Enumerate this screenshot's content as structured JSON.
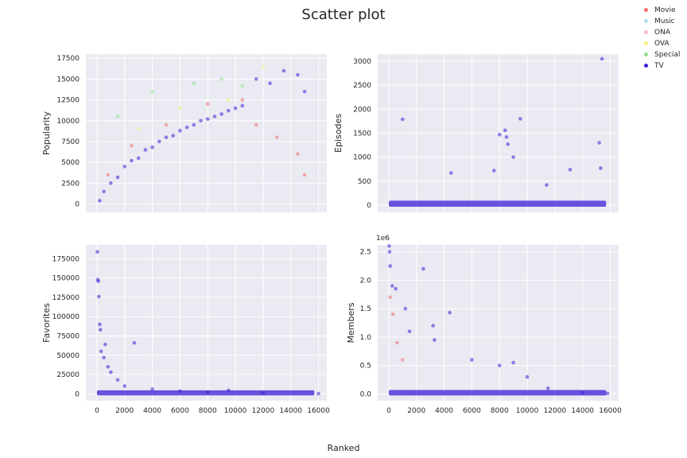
{
  "figure": {
    "title": "Scatter plot",
    "shared_xlabel": "Ranked"
  },
  "legend": [
    {
      "label": "Movie",
      "color": "#f07070"
    },
    {
      "label": "Music",
      "color": "#aee0ee"
    },
    {
      "label": "ONA",
      "color": "#f4b8d8"
    },
    {
      "label": "OVA",
      "color": "#f2f07a"
    },
    {
      "label": "Special",
      "color": "#90e090"
    },
    {
      "label": "TV",
      "color": "#3a1fd6"
    }
  ],
  "chart_data": [
    {
      "type": "scatter",
      "panel": "top-left",
      "xlabel": "",
      "ylabel": "Popularity",
      "xlim": [
        -800,
        16600
      ],
      "ylim": [
        -1000,
        18000
      ],
      "xticks": [
        0,
        2000,
        4000,
        6000,
        8000,
        10000,
        12000,
        14000,
        16000
      ],
      "xtick_labels_shown": false,
      "yticks": [
        0,
        2500,
        5000,
        7500,
        10000,
        12500,
        15000,
        17500
      ],
      "grid": true,
      "series": [
        {
          "name": "TV",
          "points": [
            [
              200,
              400
            ],
            [
              500,
              1500
            ],
            [
              1000,
              2500
            ],
            [
              1500,
              3200
            ],
            [
              2000,
              4500
            ],
            [
              2500,
              5200
            ],
            [
              3000,
              5500
            ],
            [
              3500,
              6500
            ],
            [
              4000,
              6800
            ],
            [
              4500,
              7500
            ],
            [
              5000,
              8000
            ],
            [
              5500,
              8200
            ],
            [
              6000,
              8800
            ],
            [
              6500,
              9200
            ],
            [
              7000,
              9500
            ],
            [
              7500,
              10000
            ],
            [
              8000,
              10200
            ],
            [
              8500,
              10500
            ],
            [
              9000,
              10800
            ],
            [
              9500,
              11200
            ],
            [
              10000,
              11500
            ],
            [
              10500,
              11800
            ],
            [
              11500,
              15000
            ],
            [
              12500,
              14500
            ],
            [
              13500,
              16000
            ],
            [
              14500,
              15500
            ],
            [
              15000,
              13500
            ]
          ]
        },
        {
          "name": "Movie",
          "points": [
            [
              800,
              3500
            ],
            [
              2500,
              7000
            ],
            [
              5000,
              9500
            ],
            [
              8000,
              12000
            ],
            [
              10500,
              12500
            ],
            [
              11500,
              9500
            ],
            [
              13000,
              8000
            ],
            [
              14500,
              6000
            ],
            [
              15000,
              3500
            ]
          ]
        },
        {
          "name": "Special",
          "points": [
            [
              1500,
              10500
            ],
            [
              4000,
              13500
            ],
            [
              7000,
              14500
            ],
            [
              9000,
              15000
            ],
            [
              10500,
              14200
            ]
          ]
        },
        {
          "name": "OVA",
          "points": [
            [
              3000,
              9000
            ],
            [
              6000,
              11500
            ],
            [
              9500,
              12500
            ],
            [
              12000,
              16500
            ]
          ]
        }
      ]
    },
    {
      "type": "scatter",
      "panel": "top-right",
      "xlabel": "",
      "ylabel": "Episodes",
      "xlim": [
        -800,
        16600
      ],
      "ylim": [
        -150,
        3150
      ],
      "xticks": [
        0,
        2000,
        4000,
        6000,
        8000,
        10000,
        12000,
        14000,
        16000
      ],
      "xtick_labels_shown": false,
      "yticks": [
        0,
        500,
        1000,
        1500,
        2000,
        2500,
        3000
      ],
      "grid": true,
      "series": [
        {
          "name": "TV",
          "points": [
            [
              1000,
              1790
            ],
            [
              4500,
              670
            ],
            [
              7600,
              720
            ],
            [
              8000,
              1470
            ],
            [
              8400,
              1560
            ],
            [
              8500,
              1420
            ],
            [
              8600,
              1270
            ],
            [
              9000,
              1000
            ],
            [
              9500,
              1800
            ],
            [
              11400,
              420
            ],
            [
              13100,
              740
            ],
            [
              15200,
              1300
            ],
            [
              15300,
              770
            ],
            [
              15400,
              3050
            ]
          ]
        }
      ]
    },
    {
      "type": "scatter",
      "panel": "bottom-left",
      "xlabel": "",
      "ylabel": "Favorites",
      "xlim": [
        -800,
        16600
      ],
      "ylim": [
        -9000,
        193000
      ],
      "xticks": [
        0,
        2000,
        4000,
        6000,
        8000,
        10000,
        12000,
        14000,
        16000
      ],
      "yticks": [
        0,
        25000,
        50000,
        75000,
        100000,
        125000,
        150000,
        175000
      ],
      "grid": true,
      "series": [
        {
          "name": "TV",
          "points": [
            [
              30,
              184000
            ],
            [
              60,
              148000
            ],
            [
              100,
              146000
            ],
            [
              140,
              126000
            ],
            [
              200,
              90000
            ],
            [
              250,
              83000
            ],
            [
              600,
              64000
            ],
            [
              2700,
              66000
            ],
            [
              300,
              55000
            ],
            [
              500,
              47000
            ],
            [
              800,
              35000
            ],
            [
              1000,
              28000
            ],
            [
              1500,
              18000
            ],
            [
              2000,
              10000
            ],
            [
              4000,
              6000
            ],
            [
              6000,
              3500
            ],
            [
              8000,
              2000
            ],
            [
              9500,
              4500
            ],
            [
              12000,
              800
            ],
            [
              16000,
              200
            ]
          ]
        }
      ]
    },
    {
      "type": "scatter",
      "panel": "bottom-right",
      "xlabel": "",
      "ylabel": "Members",
      "offset_text": "1e6",
      "xlim": [
        -800,
        16600
      ],
      "ylim": [
        -0.12,
        2.62
      ],
      "xticks": [
        0,
        2000,
        4000,
        6000,
        8000,
        10000,
        12000,
        14000,
        16000
      ],
      "yticks": [
        0.0,
        0.5,
        1.0,
        1.5,
        2.0,
        2.5
      ],
      "grid": true,
      "series": [
        {
          "name": "TV",
          "points": [
            [
              30,
              2.6
            ],
            [
              60,
              2.5
            ],
            [
              100,
              2.25
            ],
            [
              250,
              1.9
            ],
            [
              500,
              1.85
            ],
            [
              1200,
              1.5
            ],
            [
              2500,
              2.2
            ],
            [
              4400,
              1.43
            ],
            [
              3200,
              1.2
            ],
            [
              1500,
              1.1
            ],
            [
              3300,
              0.95
            ],
            [
              6000,
              0.6
            ],
            [
              8000,
              0.5
            ],
            [
              9000,
              0.55
            ],
            [
              10000,
              0.3
            ],
            [
              11500,
              0.1
            ],
            [
              14000,
              0.02
            ],
            [
              15800,
              0.01
            ]
          ]
        },
        {
          "name": "Movie",
          "points": [
            [
              100,
              1.7
            ],
            [
              300,
              1.4
            ],
            [
              600,
              0.9
            ],
            [
              1000,
              0.6
            ]
          ]
        }
      ]
    }
  ]
}
